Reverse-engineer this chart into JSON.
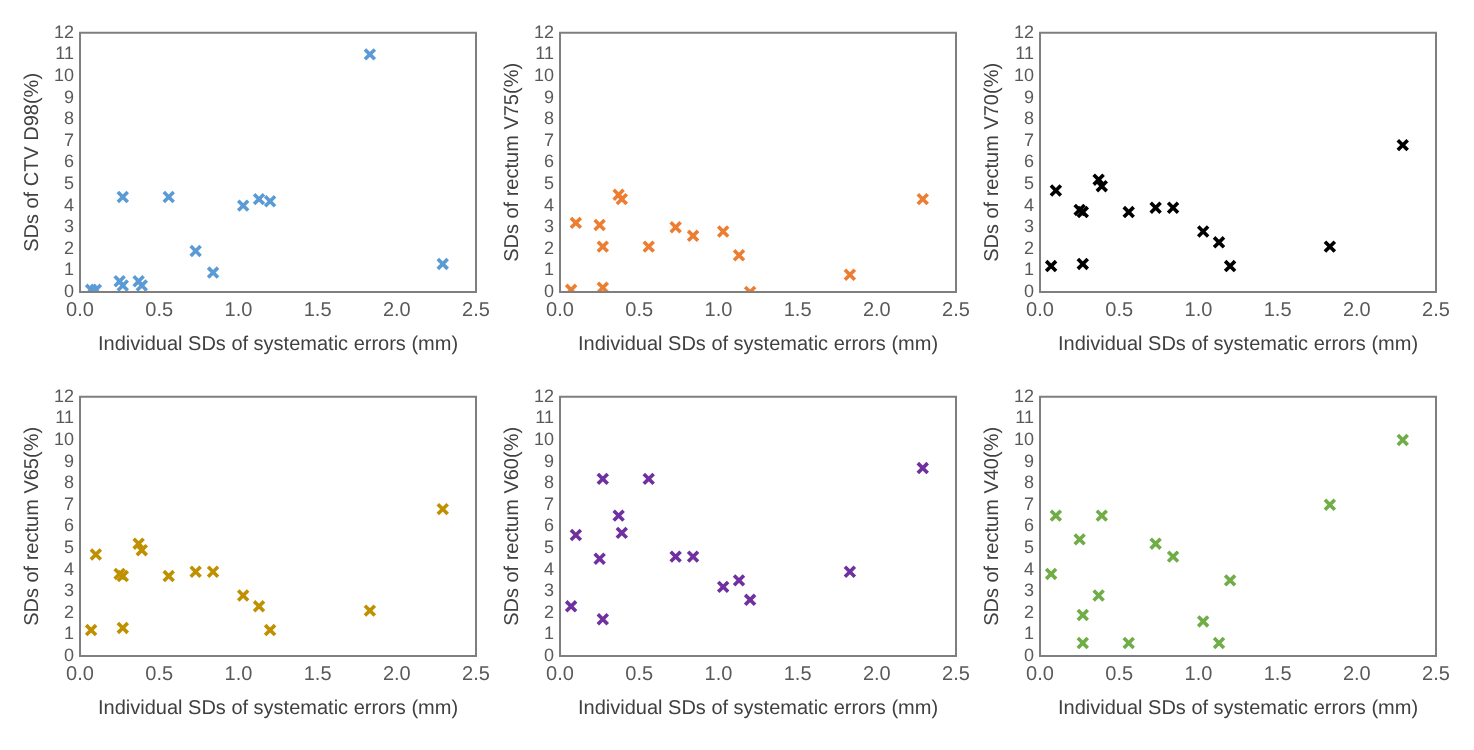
{
  "chart_data": [
    {
      "type": "scatter",
      "x": [
        0.07,
        0.1,
        0.25,
        0.27,
        0.27,
        0.37,
        0.39,
        0.56,
        0.73,
        0.84,
        1.03,
        1.13,
        1.2,
        1.83,
        2.29
      ],
      "values": [
        0.1,
        0.1,
        0.5,
        4.4,
        0.3,
        0.5,
        0.3,
        4.4,
        1.9,
        0.9,
        4.0,
        4.3,
        4.2,
        11.0,
        1.3
      ],
      "color": "#5b9bd5",
      "marker": "cross",
      "xlabel": "Individual SDs of systematic errors (mm)",
      "ylabel": "SDs of CTV D98(%)",
      "xlim": [
        0,
        2.5
      ],
      "ylim": [
        0,
        12
      ],
      "xticks": [
        {
          "value": 0,
          "label": "0.0"
        },
        {
          "value": 0.5,
          "label": "0.5"
        },
        {
          "value": 1,
          "label": "1.0"
        },
        {
          "value": 1.5,
          "label": "1.5"
        },
        {
          "value": 2,
          "label": "2.0"
        },
        {
          "value": 2.5,
          "label": "2.5"
        }
      ],
      "yticks": [
        0,
        1,
        2,
        3,
        4,
        5,
        6,
        7,
        8,
        9,
        10,
        11,
        12
      ]
    },
    {
      "type": "scatter",
      "x": [
        0.07,
        0.1,
        0.25,
        0.27,
        0.27,
        0.37,
        0.39,
        0.56,
        0.73,
        0.84,
        1.03,
        1.13,
        1.2,
        1.83,
        2.29
      ],
      "values": [
        0.1,
        3.2,
        3.1,
        2.1,
        0.2,
        4.5,
        4.3,
        2.1,
        3.0,
        2.6,
        2.8,
        1.7,
        0.0,
        0.8,
        4.3
      ],
      "color": "#ed7d31",
      "marker": "cross",
      "xlabel": "Individual SDs of systematic errors (mm)",
      "ylabel": "SDs of rectum V75(%)",
      "xlim": [
        0,
        2.5
      ],
      "ylim": [
        0,
        12
      ],
      "xticks": [
        {
          "value": 0,
          "label": "0.0"
        },
        {
          "value": 0.5,
          "label": "0.5"
        },
        {
          "value": 1,
          "label": "1.0"
        },
        {
          "value": 1.5,
          "label": "1.5"
        },
        {
          "value": 2,
          "label": "2.0"
        },
        {
          "value": 2.5,
          "label": "2.5"
        }
      ],
      "yticks": [
        0,
        1,
        2,
        3,
        4,
        5,
        6,
        7,
        8,
        9,
        10,
        11,
        12
      ]
    },
    {
      "type": "scatter",
      "x": [
        0.07,
        0.1,
        0.25,
        0.27,
        0.27,
        0.37,
        0.39,
        0.56,
        0.73,
        0.84,
        1.03,
        1.13,
        1.2,
        1.83,
        2.29
      ],
      "values": [
        1.2,
        4.7,
        3.8,
        3.7,
        1.3,
        5.2,
        4.9,
        3.7,
        3.9,
        3.9,
        2.8,
        2.3,
        1.2,
        2.1,
        6.8
      ],
      "color": "#000000",
      "marker": "cross",
      "xlabel": "Individual SDs of systematic errors (mm)",
      "ylabel": "SDs of rectum V70(%)",
      "xlim": [
        0,
        2.5
      ],
      "ylim": [
        0,
        12
      ],
      "xticks": [
        {
          "value": 0,
          "label": "0.0"
        },
        {
          "value": 0.5,
          "label": "0.5"
        },
        {
          "value": 1,
          "label": "1.0"
        },
        {
          "value": 1.5,
          "label": "1.5"
        },
        {
          "value": 2,
          "label": "2.0"
        },
        {
          "value": 2.5,
          "label": "2.5"
        }
      ],
      "yticks": [
        0,
        1,
        2,
        3,
        4,
        5,
        6,
        7,
        8,
        9,
        10,
        11,
        12
      ]
    },
    {
      "type": "scatter",
      "x": [
        0.07,
        0.1,
        0.25,
        0.27,
        0.27,
        0.37,
        0.39,
        0.56,
        0.73,
        0.84,
        1.03,
        1.13,
        1.2,
        1.83,
        2.29
      ],
      "values": [
        1.2,
        4.7,
        3.8,
        3.7,
        1.3,
        5.2,
        4.9,
        3.7,
        3.9,
        3.9,
        2.8,
        2.3,
        1.2,
        2.1,
        6.8
      ],
      "color": "#bf9000",
      "marker": "cross",
      "xlabel": "Individual SDs of systematic errors (mm)",
      "ylabel": "SDs of rectum V65(%)",
      "xlim": [
        0,
        2.5
      ],
      "ylim": [
        0,
        12
      ],
      "xticks": [
        {
          "value": 0,
          "label": "0.0"
        },
        {
          "value": 0.5,
          "label": "0.5"
        },
        {
          "value": 1,
          "label": "1.0"
        },
        {
          "value": 1.5,
          "label": "1.5"
        },
        {
          "value": 2,
          "label": "2.0"
        },
        {
          "value": 2.5,
          "label": "2.5"
        }
      ],
      "yticks": [
        0,
        1,
        2,
        3,
        4,
        5,
        6,
        7,
        8,
        9,
        10,
        11,
        12
      ]
    },
    {
      "type": "scatter",
      "x": [
        0.07,
        0.1,
        0.25,
        0.27,
        0.27,
        0.37,
        0.39,
        0.56,
        0.73,
        0.84,
        1.03,
        1.13,
        1.2,
        1.83,
        2.29
      ],
      "values": [
        2.3,
        5.6,
        4.5,
        8.2,
        1.7,
        6.5,
        5.7,
        8.2,
        4.6,
        4.6,
        3.2,
        3.5,
        2.6,
        3.9,
        8.7
      ],
      "color": "#7030a0",
      "marker": "cross",
      "xlabel": "Individual SDs of systematic errors (mm)",
      "ylabel": "SDs of rectum V60(%)",
      "xlim": [
        0,
        2.5
      ],
      "ylim": [
        0,
        12
      ],
      "xticks": [
        {
          "value": 0,
          "label": "0.0"
        },
        {
          "value": 0.5,
          "label": "0.5"
        },
        {
          "value": 1,
          "label": "1.0"
        },
        {
          "value": 1.5,
          "label": "1.5"
        },
        {
          "value": 2,
          "label": "2.0"
        },
        {
          "value": 2.5,
          "label": "2.5"
        }
      ],
      "yticks": [
        0,
        1,
        2,
        3,
        4,
        5,
        6,
        7,
        8,
        9,
        10,
        11,
        12
      ]
    },
    {
      "type": "scatter",
      "x": [
        0.07,
        0.1,
        0.25,
        0.27,
        0.27,
        0.37,
        0.39,
        0.56,
        0.73,
        0.84,
        1.03,
        1.13,
        1.2,
        1.83,
        2.29
      ],
      "values": [
        3.8,
        6.5,
        5.4,
        1.9,
        0.6,
        2.8,
        6.5,
        0.6,
        5.2,
        4.6,
        1.6,
        0.6,
        3.5,
        7.0,
        10.0
      ],
      "color": "#70ad47",
      "marker": "cross",
      "xlabel": "Individual SDs of systematic errors (mm)",
      "ylabel": "SDs of rectum V40(%)",
      "xlim": [
        0,
        2.5
      ],
      "ylim": [
        0,
        12
      ],
      "xticks": [
        {
          "value": 0,
          "label": "0.0"
        },
        {
          "value": 0.5,
          "label": "0.5"
        },
        {
          "value": 1,
          "label": "1.0"
        },
        {
          "value": 1.5,
          "label": "1.5"
        },
        {
          "value": 2,
          "label": "2.0"
        },
        {
          "value": 2.5,
          "label": "2.5"
        }
      ],
      "yticks": [
        0,
        1,
        2,
        3,
        4,
        5,
        6,
        7,
        8,
        9,
        10,
        11,
        12
      ]
    }
  ]
}
